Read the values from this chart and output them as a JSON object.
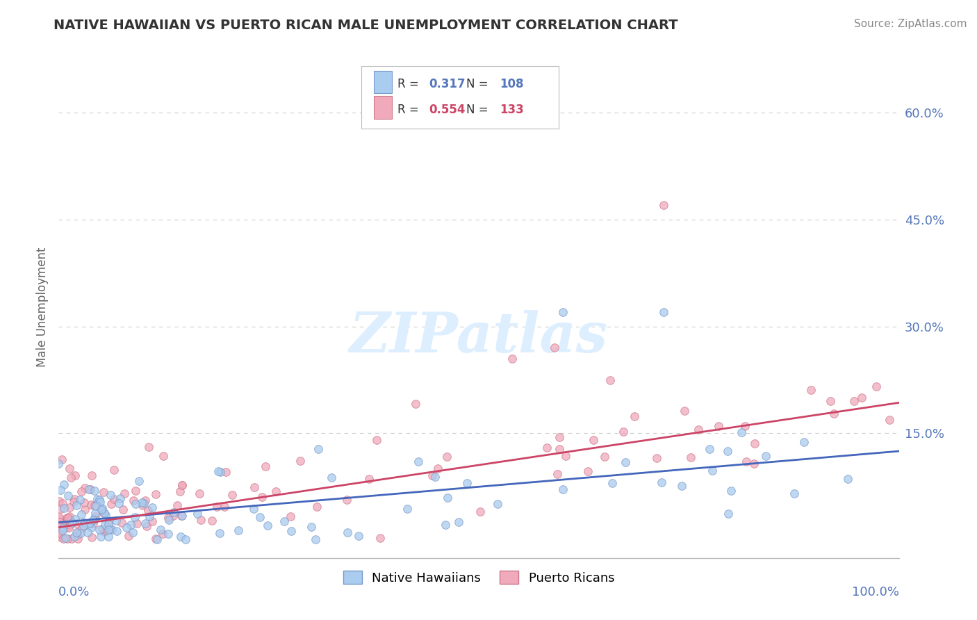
{
  "title": "NATIVE HAWAIIAN VS PUERTO RICAN MALE UNEMPLOYMENT CORRELATION CHART",
  "source": "Source: ZipAtlas.com",
  "ylabel": "Male Unemployment",
  "yticks": [
    0.15,
    0.3,
    0.45,
    0.6
  ],
  "ytick_labels": [
    "15.0%",
    "30.0%",
    "45.0%",
    "60.0%"
  ],
  "xmin": 0.0,
  "xmax": 1.0,
  "ymin": -0.025,
  "ymax": 0.68,
  "blue_R": 0.317,
  "blue_N": 108,
  "pink_R": 0.554,
  "pink_N": 133,
  "blue_color": "#aaccee",
  "pink_color": "#f0aabc",
  "blue_edge_color": "#7799cc",
  "pink_edge_color": "#cc7788",
  "blue_line_color": "#4466bb",
  "pink_line_color": "#cc4466",
  "title_color": "#333333",
  "axis_tick_color": "#5577bb",
  "grid_color": "#cccccc",
  "watermark_color": "#ddeeff",
  "background_color": "#ffffff",
  "blue_R_val": "0.317",
  "blue_N_val": "108",
  "pink_R_val": "0.554",
  "pink_N_val": "133",
  "legend_label_blue": "Native Hawaiians",
  "legend_label_pink": "Puerto Ricans"
}
